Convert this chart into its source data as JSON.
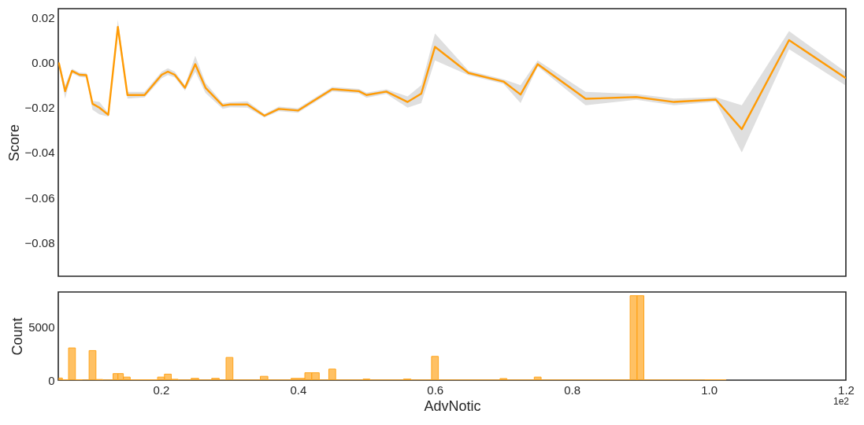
{
  "chart_data": [
    {
      "type": "line",
      "ylabel": "Score",
      "tick_labels": "y",
      "xlim": [
        0.05,
        1.2
      ],
      "ylim": [
        -0.095,
        0.024
      ],
      "yticks": [
        0.02,
        {
          "value": 0,
          "label": "0.00"
        },
        {
          "value": -0.02,
          "label": "−0.02"
        },
        {
          "value": -0.04,
          "label": "−0.04"
        },
        {
          "value": -0.06,
          "label": "−0.06"
        },
        {
          "value": -0.08,
          "label": "−0.08"
        }
      ],
      "x": [
        0.051,
        0.06,
        0.07,
        0.081,
        0.091,
        0.1,
        0.11,
        0.123,
        0.137,
        0.151,
        0.176,
        0.201,
        0.21,
        0.22,
        0.235,
        0.25,
        0.265,
        0.29,
        0.301,
        0.326,
        0.351,
        0.372,
        0.4,
        0.45,
        0.489,
        0.5,
        0.529,
        0.56,
        0.58,
        0.6,
        0.649,
        0.7,
        0.725,
        0.75,
        0.82,
        0.894,
        0.949,
        1.01,
        1.048,
        1.117,
        1.199
      ],
      "series": [
        {
          "color": "#ff9b05",
          "values": [
            -0.0003,
            -0.0127,
            -0.0037,
            -0.0054,
            -0.0056,
            -0.0183,
            -0.02,
            -0.0232,
            0.0159,
            -0.0144,
            -0.0144,
            -0.0054,
            -0.004,
            -0.0054,
            -0.0112,
            -0.0007,
            -0.0112,
            -0.0191,
            -0.0186,
            -0.0186,
            -0.0236,
            -0.0206,
            -0.0213,
            -0.0118,
            -0.0127,
            -0.0144,
            -0.0129,
            -0.0175,
            -0.0138,
            0.007,
            -0.0046,
            -0.0084,
            -0.0142,
            -0.0007,
            -0.0161,
            -0.0153,
            -0.0175,
            -0.0164,
            -0.0296,
            0.01,
            -0.0067
          ],
          "lower": [
            -0.0011,
            -0.016,
            -0.0047,
            -0.0064,
            -0.0066,
            -0.021,
            -0.023,
            -0.024,
            0.013,
            -0.016,
            -0.0155,
            -0.007,
            -0.0055,
            -0.0065,
            -0.0125,
            -0.004,
            -0.0135,
            -0.0205,
            -0.0198,
            -0.02,
            -0.0244,
            -0.0216,
            -0.0223,
            -0.0128,
            -0.0137,
            -0.0156,
            -0.0139,
            -0.02,
            -0.018,
            0.001,
            -0.0056,
            -0.0094,
            -0.018,
            -0.0017,
            -0.019,
            -0.0165,
            -0.019,
            -0.0174,
            -0.04,
            0.006,
            -0.01
          ],
          "upper": [
            0.0005,
            -0.01,
            -0.0027,
            -0.0044,
            -0.0046,
            -0.017,
            -0.0175,
            -0.0224,
            0.019,
            -0.013,
            -0.013,
            -0.004,
            -0.0025,
            -0.004,
            -0.01,
            0.003,
            -0.009,
            -0.018,
            -0.0176,
            -0.0172,
            -0.0228,
            -0.0196,
            -0.0203,
            -0.0108,
            -0.0117,
            -0.0134,
            -0.0119,
            -0.015,
            -0.01,
            0.013,
            -0.0036,
            -0.0074,
            -0.01,
            0.001,
            -0.013,
            -0.014,
            -0.016,
            -0.0154,
            -0.019,
            0.014,
            -0.004
          ]
        }
      ]
    },
    {
      "type": "histogram",
      "xlabel": "AdvNotic",
      "ylabel": "Count",
      "color": "#ffa31a",
      "annotations": [
        "1e2"
      ],
      "xlim": [
        0.05,
        1.2
      ],
      "xticks": [
        0.2,
        0.4,
        0.6,
        0.8,
        {
          "value": 1,
          "label": "1.0"
        },
        1.2
      ],
      "ylim": [
        0,
        8350
      ],
      "yticks": [
        0,
        5000
      ],
      "bins": [
        0.051,
        0.056,
        0.065,
        0.075,
        0.085,
        0.095,
        0.105,
        0.115,
        0.13,
        0.137,
        0.145,
        0.155,
        0.195,
        0.205,
        0.215,
        0.225,
        0.244,
        0.255,
        0.274,
        0.285,
        0.295,
        0.305,
        0.345,
        0.356,
        0.39,
        0.41,
        0.42,
        0.431,
        0.445,
        0.455,
        0.495,
        0.505,
        0.554,
        0.565,
        0.595,
        0.605,
        0.695,
        0.705,
        0.745,
        0.755,
        0.885,
        0.895,
        0.905,
        0.994,
        1.025
      ],
      "values": [
        200,
        30,
        3050,
        40,
        0,
        2800,
        60,
        0,
        620,
        620,
        290,
        20,
        290,
        570,
        80,
        0,
        170,
        0,
        170,
        0,
        2150,
        0,
        360,
        0,
        170,
        700,
        700,
        0,
        1050,
        0,
        100,
        0,
        100,
        0,
        2250,
        0,
        150,
        0,
        290,
        0,
        8000,
        8000,
        0,
        20
      ]
    }
  ]
}
